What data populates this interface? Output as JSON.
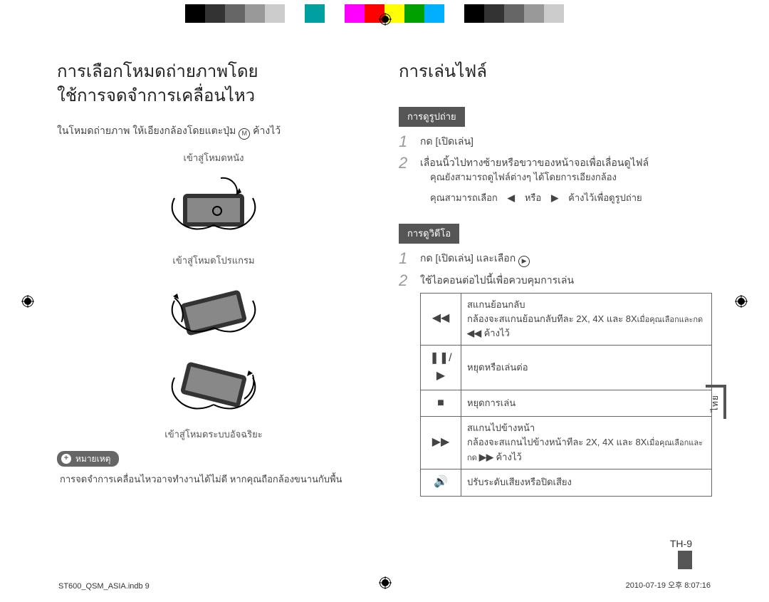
{
  "colorbar": [
    "#000000",
    "#333333",
    "#666666",
    "#999999",
    "#cccccc",
    "#ffffff",
    "#00a0a0",
    "#ffffff",
    "#ff00ff",
    "#ff0000",
    "#ffff00",
    "#00a000",
    "#00b0ff",
    "#ffffff",
    "#000000",
    "#333333",
    "#666666",
    "#999999",
    "#cccccc",
    "#ffffff"
  ],
  "left": {
    "heading": "การเลือกโหมดถ่ายภาพโดย\nใช้การจดจำการเคลื่อนไหว",
    "intro_before_icon": "ในโหมดถ่ายภาพ ให้เอียงกล้องโดยแตะปุ่ม ",
    "intro_after_icon": " ค้างไว้",
    "intro_icon_name": "mode-icon",
    "mode1_caption": "เข้าสู่โหมดหนัง",
    "mode2_caption": "เข้าสู่โหมดโปรแกรม",
    "mode3_caption": "เข้าสู่โหมดระบบอัจฉริยะ",
    "note_label": "หมายเหตุ",
    "note_text": "การจดจำการเคลื่อนไหวอาจทำงานได้ไม่ดี หากคุณถือกล้องขนานกับพื้น"
  },
  "right": {
    "heading": "การเล่นไฟล์",
    "section1_title": "การดูรูปถ่าย",
    "s1_step1": "กด [เปิดเล่น]",
    "s1_step2": "เลื่อนนิ้วไปทางซ้ายหรือขวาของหน้าจอเพื่อเลื่อนดูไฟล์",
    "s1_b1": "คุณยังสามารถดูไฟล์ต่างๆ ได้โดยการเอียงกล้อง",
    "s1_b2_a": "คุณสามารถเลือก ",
    "s1_b2_b": " หรือ ",
    "s1_b2_c": " ค้างไว้เพื่อดูรูปถ่าย",
    "section2_title": "การดูวิดีโอ",
    "s2_step1_a": "กด [เปิดเล่น] และเลือก ",
    "s2_step2": "ใช้ไอคอนต่อไปนี้เพื่อควบคุมการเล่น",
    "table": [
      {
        "icon": "◀◀",
        "text_a": "สแกนย้อนกลับ\nกล้องจะสแกนย้อนกลับทีละ 2X, 4X และ 8X",
        "text_b": "เมื่อคุณเลือกและกด ",
        "text_c": " ค้างไว้"
      },
      {
        "icon": "❚❚/▶",
        "text": "หยุดหรือเล่นต่อ"
      },
      {
        "icon": "■",
        "text": "หยุดการเล่น"
      },
      {
        "icon": "▶▶",
        "text_a": "สแกนไปข้างหน้า\nกล้องจะสแกนไปข้างหน้าทีละ 2X, 4X และ 8X",
        "text_b": "เมื่อคุณเลือกและกด ",
        "text_c": " ค้างไว้"
      },
      {
        "icon": "🔊",
        "text": "ปรับระดับเสียงหรือปิดเสียง"
      }
    ]
  },
  "side_tab": "ไทย",
  "page_number": "TH-9",
  "footer_left": "ST600_QSM_ASIA.indb   9",
  "footer_right": "2010-07-19   오후 8:07:16"
}
